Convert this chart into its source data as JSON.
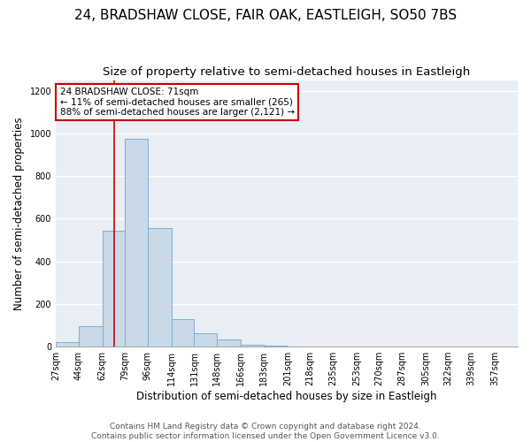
{
  "title": "24, BRADSHAW CLOSE, FAIR OAK, EASTLEIGH, SO50 7BS",
  "subtitle": "Size of property relative to semi-detached houses in Eastleigh",
  "xlabel": "Distribution of semi-detached houses by size in Eastleigh",
  "ylabel": "Number of semi-detached properties",
  "footer1": "Contains HM Land Registry data © Crown copyright and database right 2024.",
  "footer2": "Contains public sector information licensed under the Open Government Licence v3.0.",
  "annotation_line1": "24 BRADSHAW CLOSE: 71sqm",
  "annotation_line2": "← 11% of semi-detached houses are smaller (265)",
  "annotation_line3": "88% of semi-detached houses are larger (2,121) →",
  "property_size": 71,
  "bar_color": "#c9d9e8",
  "bar_edge_color": "#7bafd4",
  "redline_color": "#cc0000",
  "annotation_box_color": "#ffffff",
  "annotation_box_edge": "#cc0000",
  "background_color": "#e8eef4",
  "bins": [
    27,
    44,
    62,
    79,
    96,
    114,
    131,
    148,
    166,
    183,
    201,
    218,
    235,
    253,
    270,
    287,
    305,
    322,
    339,
    357,
    374
  ],
  "counts": [
    20,
    95,
    545,
    975,
    555,
    130,
    65,
    35,
    10,
    5,
    0,
    0,
    0,
    0,
    0,
    0,
    0,
    0,
    0,
    0
  ],
  "ylim": [
    0,
    1250
  ],
  "yticks": [
    0,
    200,
    400,
    600,
    800,
    1000,
    1200
  ],
  "title_fontsize": 11,
  "subtitle_fontsize": 9.5,
  "tick_fontsize": 7,
  "label_fontsize": 8.5,
  "footer_fontsize": 6.5,
  "annotation_fontsize": 7.5
}
